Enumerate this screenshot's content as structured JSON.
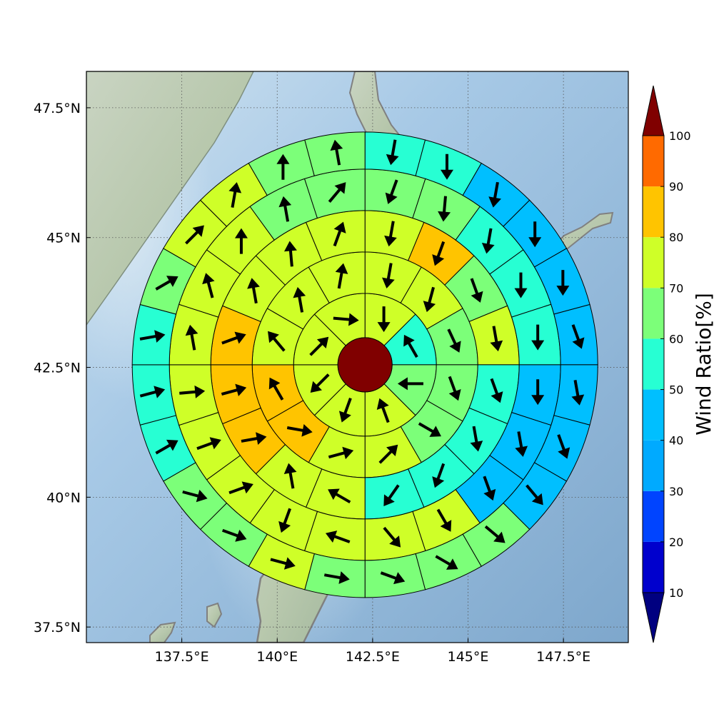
{
  "map": {
    "lon_range": [
      135.0,
      149.2
    ],
    "lat_range": [
      37.2,
      48.2
    ],
    "lon_ticks": [
      {
        "value": 137.5,
        "label": "137.5°E"
      },
      {
        "value": 140.0,
        "label": "140°E"
      },
      {
        "value": 142.5,
        "label": "142.5°E"
      },
      {
        "value": 145.0,
        "label": "145°E"
      },
      {
        "value": 147.5,
        "label": "147.5°E"
      }
    ],
    "lat_ticks": [
      {
        "value": 47.5,
        "label": "47.5°N"
      },
      {
        "value": 45.0,
        "label": "45°N"
      },
      {
        "value": 42.5,
        "label": "42.5°N"
      },
      {
        "value": 40.0,
        "label": "40°N"
      },
      {
        "value": 37.5,
        "label": "37.5°N"
      }
    ],
    "grid": "dotted",
    "background": "shaded-relief",
    "coastline_color": "#808080"
  },
  "polar_grid": {
    "center_lon": 142.3,
    "center_lat": 42.55,
    "center_disk_color": "#800000",
    "rings": [
      {
        "ratios": [
          62,
          45,
          55,
          62,
          62,
          62,
          62,
          62
        ],
        "wind_dirs": [
          180,
          330,
          270,
          340,
          200,
          225,
          45,
          95
        ]
      },
      {
        "ratios": [
          62,
          62,
          58,
          50,
          50,
          62,
          66,
          72,
          72,
          62,
          62,
          62
        ],
        "wind_dirs": [
          190,
          195,
          155,
          160,
          120,
          45,
          75,
          100,
          330,
          320,
          350,
          10
        ]
      },
      {
        "ratios": [
          62,
          72,
          58,
          62,
          48,
          48,
          48,
          45,
          62,
          66,
          72,
          72,
          72,
          62,
          62,
          62
        ],
        "wind_dirs": [
          190,
          200,
          160,
          170,
          160,
          170,
          200,
          215,
          300,
          350,
          80,
          75,
          70,
          350,
          355,
          20
        ]
      },
      {
        "ratios": [
          50,
          58,
          45,
          45,
          45,
          35,
          35,
          35,
          62,
          60,
          62,
          62,
          62,
          62,
          62,
          62,
          62,
          62,
          50,
          52
        ],
        "wind_dirs": [
          200,
          185,
          190,
          180,
          180,
          180,
          170,
          160,
          150,
          140,
          290,
          200,
          70,
          70,
          85,
          350,
          345,
          0,
          350,
          40
        ]
      },
      {
        "ratios": [
          45,
          45,
          35,
          35,
          35,
          35,
          35,
          35,
          35,
          50,
          55,
          58,
          58,
          62,
          55,
          58,
          45,
          45,
          45,
          58,
          62,
          62,
          55,
          55
        ],
        "wind_dirs": [
          190,
          180,
          190,
          180,
          180,
          160,
          170,
          160,
          140,
          130,
          120,
          110,
          100,
          105,
          110,
          105,
          60,
          75,
          80,
          60,
          45,
          10,
          0,
          350
        ]
      }
    ]
  },
  "colorbar": {
    "title": "Wind Ratio[%]",
    "ticks": [
      10,
      20,
      30,
      40,
      50,
      60,
      70,
      80,
      90,
      100
    ],
    "tick_labels": [
      "10",
      "20",
      "30",
      "40",
      "50",
      "60",
      "70",
      "80",
      "90",
      "100"
    ],
    "colors": [
      "#000080",
      "#0000cd",
      "#0044ff",
      "#00aaff",
      "#00bfff",
      "#27ffd3",
      "#7cff79",
      "#cfff28",
      "#ffc400",
      "#ff6a00",
      "#ef0f00",
      "#800000"
    ]
  }
}
